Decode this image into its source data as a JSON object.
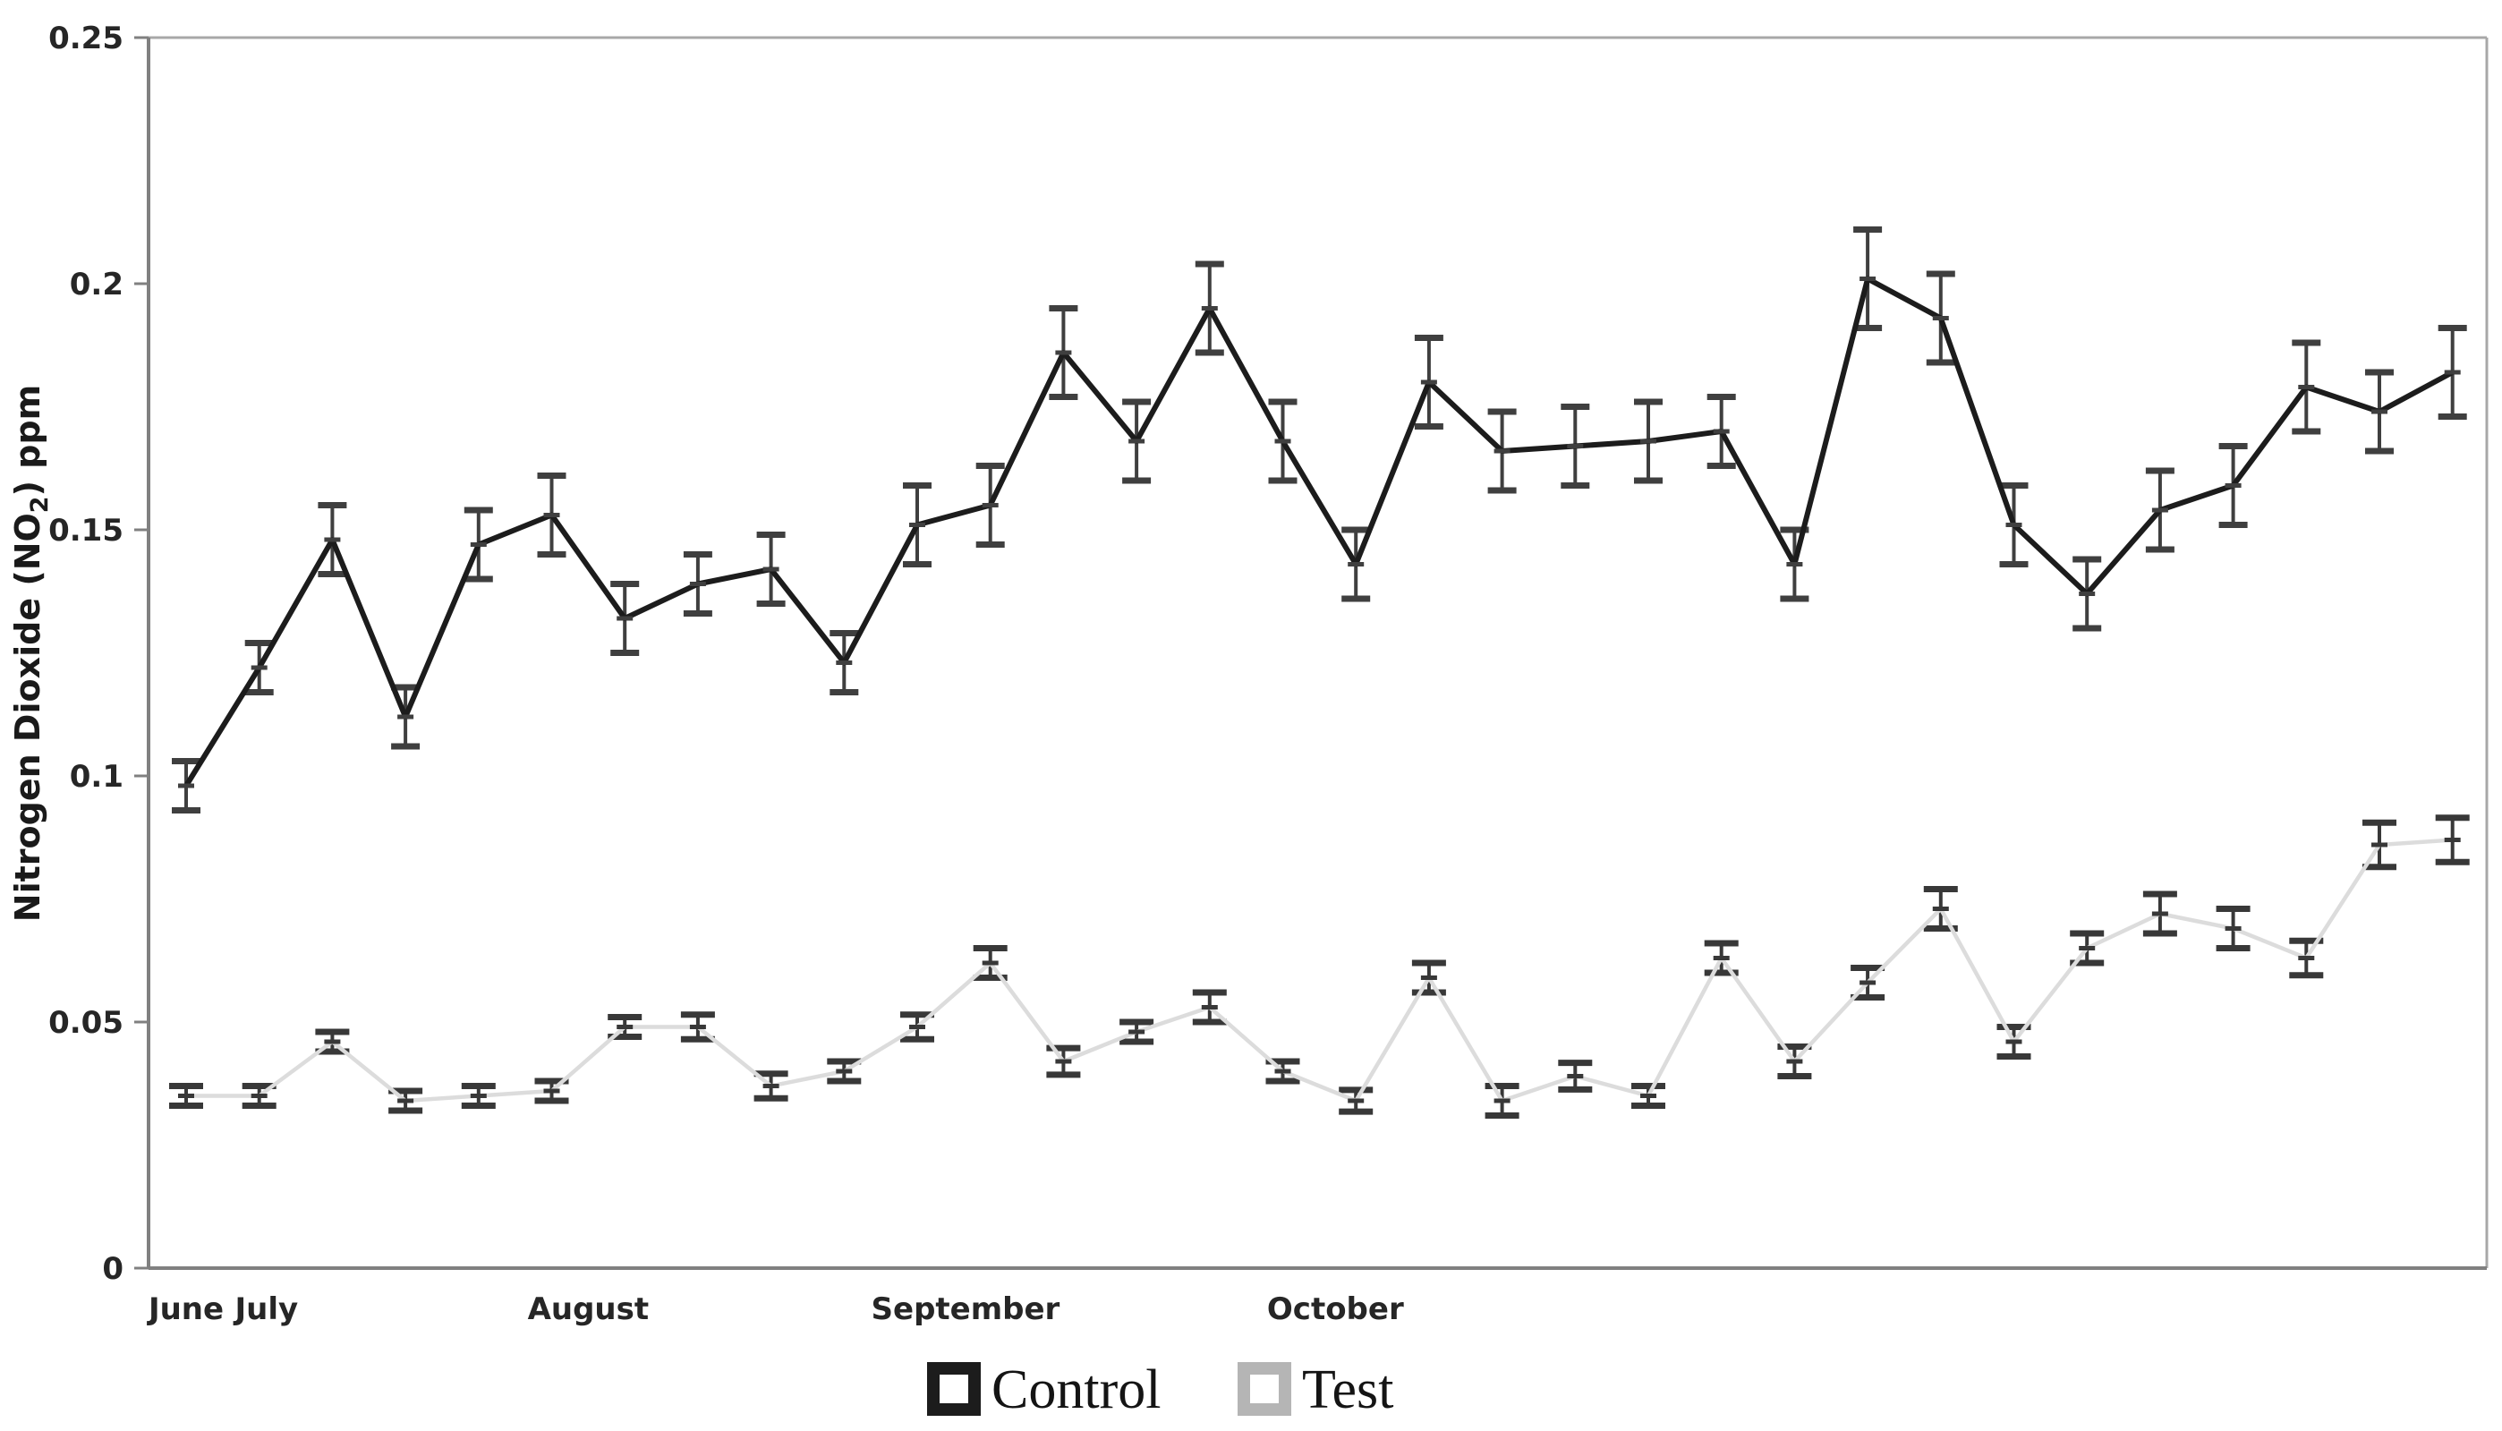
{
  "chart_data": {
    "type": "line",
    "title": "",
    "xlabel": "",
    "ylabel_parts": [
      "Nitrogen Dioxide (NO",
      "2",
      ") ppm"
    ],
    "ylabel_plain": "Nitrogen Dioxide (NO2) ppm",
    "ylim": [
      0,
      0.25
    ],
    "yticks": [
      {
        "value": 0,
        "label": "0"
      },
      {
        "value": 0.05,
        "label": "0.05"
      },
      {
        "value": 0.1,
        "label": "0.1"
      },
      {
        "value": 0.15,
        "label": "0.15"
      },
      {
        "value": 0.2,
        "label": "0.2"
      },
      {
        "value": 0.25,
        "label": "0.25"
      }
    ],
    "x_point_count": 32,
    "month_labels": [
      {
        "label": "June",
        "point_index": 1.0
      },
      {
        "label": "July",
        "point_index": 2.1
      },
      {
        "label": "August",
        "point_index": 6.5
      },
      {
        "label": "September",
        "point_index": 11.66
      },
      {
        "label": "October",
        "point_index": 16.72
      }
    ],
    "grid": false,
    "legend_position": "bottom-center",
    "colors": {
      "axis": "#808080",
      "frame_light": "#a8a8a8",
      "tick_text": "#262626",
      "control_line": "#1c1c1c",
      "test_line": "#dcdcdc",
      "control_error": "#3f3f3f",
      "test_error": "#383838",
      "legend_test_marker": "#b5b5b5"
    },
    "series": [
      {
        "name": "Control",
        "values": [
          0.098,
          0.122,
          0.148,
          0.112,
          0.147,
          0.153,
          0.132,
          0.139,
          0.142,
          0.123,
          0.151,
          0.155,
          0.186,
          0.168,
          0.195,
          0.168,
          0.143,
          0.18,
          0.166,
          0.167,
          0.168,
          0.17,
          0.143,
          0.201,
          0.193,
          0.151,
          0.137,
          0.154,
          0.159,
          0.179,
          0.174,
          0.182
        ],
        "errors": [
          0.005,
          0.005,
          0.007,
          0.006,
          0.007,
          0.008,
          0.007,
          0.006,
          0.007,
          0.006,
          0.008,
          0.008,
          0.009,
          0.008,
          0.009,
          0.008,
          0.007,
          0.009,
          0.008,
          0.008,
          0.008,
          0.007,
          0.007,
          0.01,
          0.009,
          0.008,
          0.007,
          0.008,
          0.008,
          0.009,
          0.008,
          0.009
        ]
      },
      {
        "name": "Test",
        "values": [
          0.035,
          0.035,
          0.046,
          0.034,
          0.035,
          0.036,
          0.049,
          0.049,
          0.037,
          0.04,
          0.049,
          0.062,
          0.042,
          0.048,
          0.053,
          0.04,
          0.034,
          0.059,
          0.034,
          0.039,
          0.035,
          0.063,
          0.042,
          0.058,
          0.073,
          0.046,
          0.065,
          0.072,
          0.069,
          0.063,
          0.086,
          0.087
        ],
        "errors": [
          0.002,
          0.002,
          0.002,
          0.002,
          0.002,
          0.002,
          0.002,
          0.0025,
          0.0025,
          0.002,
          0.0025,
          0.003,
          0.0027,
          0.002,
          0.003,
          0.002,
          0.0022,
          0.003,
          0.003,
          0.0027,
          0.002,
          0.003,
          0.003,
          0.003,
          0.004,
          0.003,
          0.003,
          0.004,
          0.004,
          0.0035,
          0.0045,
          0.0045
        ]
      }
    ],
    "legend": [
      {
        "label": "Control"
      },
      {
        "label": "Test"
      }
    ]
  }
}
